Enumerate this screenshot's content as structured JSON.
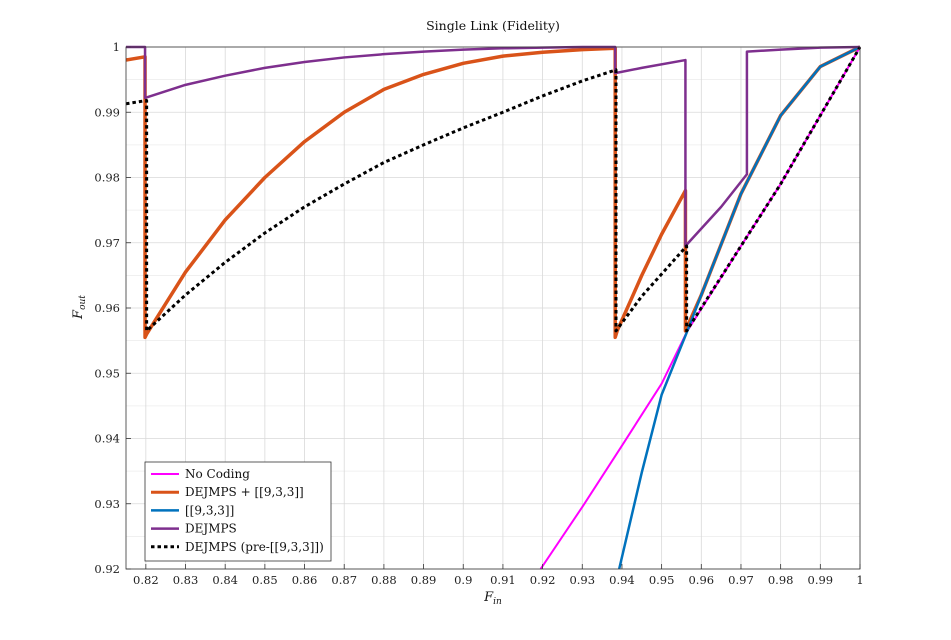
{
  "chart_data": {
    "type": "line",
    "title": "Single Link (Fidelity)",
    "xlabel": {
      "main": "F",
      "sub": "in"
    },
    "ylabel": {
      "main": "F",
      "sub": "out"
    },
    "xlim": [
      0.815,
      1.0
    ],
    "ylim": [
      0.92,
      1.0
    ],
    "xticks": [
      0.82,
      0.83,
      0.84,
      0.85,
      0.86,
      0.87,
      0.88,
      0.89,
      0.9,
      0.91,
      0.92,
      0.93,
      0.94,
      0.95,
      0.96,
      0.97,
      0.98,
      0.99,
      1
    ],
    "xtick_labels": [
      "0.82",
      "0.83",
      "0.84",
      "0.85",
      "0.86",
      "0.87",
      "0.88",
      "0.89",
      "0.9",
      "0.91",
      "0.92",
      "0.93",
      "0.94",
      "0.95",
      "0.96",
      "0.97",
      "0.98",
      "0.99",
      "1"
    ],
    "yticks": [
      0.92,
      0.93,
      0.94,
      0.95,
      0.96,
      0.97,
      0.98,
      0.99,
      1
    ],
    "ytick_labels": [
      "0.92",
      "0.93",
      "0.94",
      "0.95",
      "0.96",
      "0.97",
      "0.98",
      "0.99",
      "1"
    ],
    "grid": true,
    "legend_position": "bottom-left",
    "series": [
      {
        "name": "No Coding",
        "color": "#ff00ff",
        "style": "solid",
        "width": 2,
        "x": [
          0.9195,
          0.93,
          0.94,
          0.95,
          0.9565,
          0.97,
          0.98,
          0.99,
          1.0
        ],
        "y": [
          0.92,
          0.9295,
          0.9389,
          0.9484,
          0.9565,
          0.9695,
          0.979,
          0.9895,
          1.0
        ]
      },
      {
        "name": "DEJMPS + [[9,3,3]]",
        "color": "#d95319",
        "style": "solid",
        "width": 3.5,
        "x": [
          0.815,
          0.8198,
          0.8198,
          0.8202,
          0.83,
          0.84,
          0.85,
          0.86,
          0.87,
          0.88,
          0.89,
          0.9,
          0.91,
          0.92,
          0.93,
          0.9383,
          0.9383,
          0.9388,
          0.945,
          0.95,
          0.956,
          0.956,
          0.96,
          0.97,
          0.98,
          0.99,
          1.0
        ],
        "y": [
          0.998,
          0.9985,
          0.9555,
          0.956,
          0.9655,
          0.9735,
          0.98,
          0.9855,
          0.99,
          0.9935,
          0.9958,
          0.9975,
          0.9986,
          0.9992,
          0.9996,
          0.9998,
          0.9555,
          0.9565,
          0.965,
          0.9713,
          0.978,
          0.9565,
          0.962,
          0.9775,
          0.9895,
          0.997,
          1.0
        ]
      },
      {
        "name": "[[9,3,3]]",
        "color": "#0072bd",
        "style": "solid",
        "width": 2.5,
        "x": [
          0.9393,
          0.945,
          0.95,
          0.9565,
          0.96,
          0.97,
          0.98,
          0.99,
          1.0
        ],
        "y": [
          0.92,
          0.9348,
          0.9467,
          0.9565,
          0.962,
          0.9775,
          0.9895,
          0.997,
          1.0
        ]
      },
      {
        "name": "DEJMPS",
        "color": "#7e2f8e",
        "style": "solid",
        "width": 2.5,
        "x": [
          0.815,
          0.8198,
          0.8198,
          0.83,
          0.84,
          0.85,
          0.86,
          0.87,
          0.88,
          0.89,
          0.9,
          0.91,
          0.92,
          0.93,
          0.9383,
          0.9383,
          0.945,
          0.956,
          0.956,
          0.965,
          0.9715,
          0.9715,
          0.98,
          0.99,
          1.0
        ],
        "y": [
          1.0,
          1.0,
          0.9922,
          0.9942,
          0.9956,
          0.9968,
          0.9977,
          0.9984,
          0.9989,
          0.9993,
          0.9996,
          0.9998,
          0.9999,
          1.0,
          1.0,
          0.996,
          0.9968,
          0.998,
          0.9695,
          0.9755,
          0.9805,
          0.9993,
          0.9996,
          0.9999,
          1.0
        ]
      },
      {
        "name": "DEJMPS (pre-[[9,3,3]])",
        "color": "#000000",
        "style": "dotted",
        "width": 3,
        "x": [
          0.815,
          0.8202,
          0.8202,
          0.83,
          0.84,
          0.85,
          0.86,
          0.87,
          0.88,
          0.89,
          0.9,
          0.91,
          0.92,
          0.93,
          0.9385,
          0.9385,
          0.945,
          0.9563,
          0.9563,
          0.97,
          0.98,
          0.99,
          1.0
        ],
        "y": [
          0.9913,
          0.9918,
          0.9565,
          0.962,
          0.967,
          0.9715,
          0.9755,
          0.979,
          0.9823,
          0.985,
          0.9876,
          0.99,
          0.9925,
          0.9948,
          0.9965,
          0.9565,
          0.9618,
          0.9695,
          0.9565,
          0.9695,
          0.979,
          0.9895,
          1.0
        ]
      }
    ]
  }
}
